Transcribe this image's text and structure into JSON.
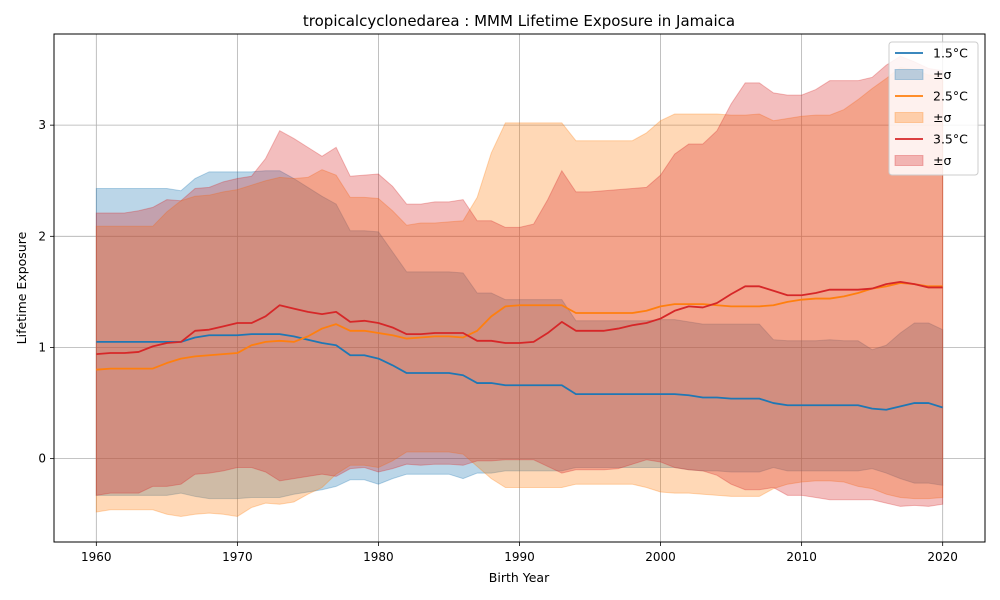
{
  "chart_data": {
    "type": "area",
    "title": "tropicalcyclonedarea : MMM Lifetime Exposure in Jamaica",
    "xlabel": "Birth Year",
    "ylabel": "Lifetime Exposure",
    "xlim": [
      1957,
      2023
    ],
    "ylim": [
      -0.75,
      3.82
    ],
    "xticks": [
      1960,
      1970,
      1980,
      1990,
      2000,
      2010,
      2020
    ],
    "yticks": [
      0,
      1,
      2,
      3
    ],
    "grid": true,
    "legend_position": "top-right",
    "x": [
      1960,
      1961,
      1962,
      1963,
      1964,
      1965,
      1966,
      1967,
      1968,
      1969,
      1970,
      1971,
      1972,
      1973,
      1974,
      1975,
      1976,
      1977,
      1978,
      1979,
      1980,
      1981,
      1982,
      1983,
      1984,
      1985,
      1986,
      1987,
      1988,
      1989,
      1990,
      1991,
      1992,
      1993,
      1994,
      1995,
      1996,
      1997,
      1998,
      1999,
      2000,
      2001,
      2002,
      2003,
      2004,
      2005,
      2006,
      2007,
      2008,
      2009,
      2010,
      2011,
      2012,
      2013,
      2014,
      2015,
      2016,
      2017,
      2018,
      2019,
      2020
    ],
    "series": [
      {
        "name": "1.5°C",
        "color": "#1f77b4",
        "band_label": "±σ",
        "mean": [
          1.05,
          1.05,
          1.05,
          1.05,
          1.05,
          1.05,
          1.05,
          1.09,
          1.11,
          1.11,
          1.11,
          1.12,
          1.12,
          1.12,
          1.1,
          1.07,
          1.04,
          1.02,
          0.93,
          0.93,
          0.9,
          0.84,
          0.77,
          0.77,
          0.77,
          0.77,
          0.75,
          0.68,
          0.68,
          0.66,
          0.66,
          0.66,
          0.66,
          0.66,
          0.58,
          0.58,
          0.58,
          0.58,
          0.58,
          0.58,
          0.58,
          0.58,
          0.57,
          0.55,
          0.55,
          0.54,
          0.54,
          0.54,
          0.5,
          0.48,
          0.48,
          0.48,
          0.48,
          0.48,
          0.48,
          0.45,
          0.44,
          0.47,
          0.5,
          0.5,
          0.46
        ],
        "upper": [
          2.43,
          2.43,
          2.43,
          2.43,
          2.43,
          2.43,
          2.41,
          2.52,
          2.58,
          2.58,
          2.58,
          2.58,
          2.59,
          2.59,
          2.52,
          2.44,
          2.36,
          2.29,
          2.05,
          2.05,
          2.04,
          1.86,
          1.68,
          1.68,
          1.68,
          1.68,
          1.67,
          1.49,
          1.49,
          1.43,
          1.43,
          1.43,
          1.43,
          1.43,
          1.24,
          1.24,
          1.24,
          1.24,
          1.24,
          1.24,
          1.25,
          1.25,
          1.23,
          1.21,
          1.21,
          1.21,
          1.21,
          1.21,
          1.07,
          1.06,
          1.06,
          1.06,
          1.07,
          1.06,
          1.06,
          0.98,
          1.02,
          1.13,
          1.22,
          1.22,
          1.16
        ],
        "lower": [
          -0.33,
          -0.33,
          -0.33,
          -0.33,
          -0.33,
          -0.33,
          -0.31,
          -0.34,
          -0.36,
          -0.36,
          -0.36,
          -0.35,
          -0.35,
          -0.35,
          -0.32,
          -0.3,
          -0.28,
          -0.25,
          -0.19,
          -0.19,
          -0.23,
          -0.18,
          -0.14,
          -0.14,
          -0.14,
          -0.14,
          -0.18,
          -0.13,
          -0.13,
          -0.11,
          -0.11,
          -0.11,
          -0.11,
          -0.11,
          -0.08,
          -0.08,
          -0.08,
          -0.08,
          -0.08,
          -0.08,
          -0.08,
          -0.08,
          -0.1,
          -0.11,
          -0.11,
          -0.12,
          -0.12,
          -0.12,
          -0.08,
          -0.11,
          -0.11,
          -0.11,
          -0.11,
          -0.11,
          -0.11,
          -0.09,
          -0.13,
          -0.18,
          -0.22,
          -0.22,
          -0.24
        ]
      },
      {
        "name": "2.5°C",
        "color": "#ff7f0e",
        "band_label": "±σ",
        "mean": [
          0.8,
          0.81,
          0.81,
          0.81,
          0.81,
          0.86,
          0.9,
          0.92,
          0.93,
          0.94,
          0.95,
          1.02,
          1.05,
          1.06,
          1.05,
          1.1,
          1.17,
          1.21,
          1.15,
          1.15,
          1.13,
          1.11,
          1.08,
          1.09,
          1.1,
          1.1,
          1.09,
          1.15,
          1.28,
          1.37,
          1.38,
          1.38,
          1.38,
          1.38,
          1.31,
          1.31,
          1.31,
          1.31,
          1.31,
          1.33,
          1.37,
          1.39,
          1.39,
          1.39,
          1.38,
          1.37,
          1.37,
          1.37,
          1.38,
          1.41,
          1.43,
          1.44,
          1.44,
          1.46,
          1.49,
          1.53,
          1.55,
          1.58,
          1.57,
          1.55,
          1.55
        ],
        "upper": [
          2.09,
          2.09,
          2.09,
          2.09,
          2.09,
          2.22,
          2.32,
          2.36,
          2.37,
          2.4,
          2.42,
          2.46,
          2.5,
          2.53,
          2.52,
          2.53,
          2.6,
          2.55,
          2.35,
          2.35,
          2.34,
          2.23,
          2.1,
          2.12,
          2.12,
          2.13,
          2.14,
          2.35,
          2.75,
          3.02,
          3.02,
          3.02,
          3.02,
          3.02,
          2.86,
          2.86,
          2.86,
          2.86,
          2.86,
          2.93,
          3.04,
          3.1,
          3.1,
          3.1,
          3.1,
          3.09,
          3.09,
          3.1,
          3.04,
          3.06,
          3.08,
          3.09,
          3.09,
          3.14,
          3.23,
          3.33,
          3.42,
          3.52,
          3.5,
          3.45,
          3.45
        ],
        "lower": [
          -0.48,
          -0.46,
          -0.46,
          -0.46,
          -0.46,
          -0.5,
          -0.52,
          -0.5,
          -0.49,
          -0.5,
          -0.52,
          -0.44,
          -0.4,
          -0.41,
          -0.39,
          -0.32,
          -0.26,
          -0.14,
          -0.06,
          -0.06,
          -0.08,
          -0.02,
          0.06,
          0.06,
          0.06,
          0.06,
          0.04,
          -0.07,
          -0.18,
          -0.26,
          -0.26,
          -0.26,
          -0.26,
          -0.26,
          -0.23,
          -0.23,
          -0.23,
          -0.23,
          -0.23,
          -0.26,
          -0.3,
          -0.31,
          -0.31,
          -0.32,
          -0.33,
          -0.34,
          -0.34,
          -0.34,
          -0.27,
          -0.23,
          -0.21,
          -0.2,
          -0.2,
          -0.21,
          -0.25,
          -0.27,
          -0.32,
          -0.35,
          -0.36,
          -0.36,
          -0.35
        ]
      },
      {
        "name": "3.5°C",
        "color": "#d62728",
        "band_label": "±σ",
        "mean": [
          0.94,
          0.95,
          0.95,
          0.96,
          1.01,
          1.04,
          1.05,
          1.15,
          1.16,
          1.19,
          1.22,
          1.22,
          1.28,
          1.38,
          1.35,
          1.32,
          1.3,
          1.32,
          1.23,
          1.24,
          1.22,
          1.18,
          1.12,
          1.12,
          1.13,
          1.13,
          1.13,
          1.06,
          1.06,
          1.04,
          1.04,
          1.05,
          1.13,
          1.23,
          1.15,
          1.15,
          1.15,
          1.17,
          1.2,
          1.22,
          1.26,
          1.33,
          1.37,
          1.36,
          1.4,
          1.48,
          1.55,
          1.55,
          1.51,
          1.47,
          1.47,
          1.49,
          1.52,
          1.52,
          1.52,
          1.53,
          1.57,
          1.59,
          1.57,
          1.54,
          1.54
        ],
        "upper": [
          2.21,
          2.21,
          2.21,
          2.23,
          2.26,
          2.33,
          2.32,
          2.43,
          2.44,
          2.49,
          2.52,
          2.54,
          2.7,
          2.95,
          2.88,
          2.8,
          2.72,
          2.8,
          2.54,
          2.55,
          2.56,
          2.45,
          2.29,
          2.29,
          2.31,
          2.31,
          2.33,
          2.14,
          2.14,
          2.08,
          2.08,
          2.11,
          2.33,
          2.59,
          2.4,
          2.4,
          2.41,
          2.42,
          2.43,
          2.44,
          2.55,
          2.74,
          2.83,
          2.83,
          2.95,
          3.19,
          3.38,
          3.38,
          3.29,
          3.27,
          3.27,
          3.32,
          3.4,
          3.4,
          3.4,
          3.43,
          3.54,
          3.62,
          3.57,
          3.51,
          3.49
        ],
        "lower": [
          -0.33,
          -0.31,
          -0.31,
          -0.31,
          -0.25,
          -0.25,
          -0.23,
          -0.14,
          -0.13,
          -0.11,
          -0.08,
          -0.08,
          -0.12,
          -0.2,
          -0.18,
          -0.16,
          -0.14,
          -0.16,
          -0.09,
          -0.08,
          -0.12,
          -0.09,
          -0.05,
          -0.06,
          -0.05,
          -0.05,
          -0.06,
          -0.02,
          -0.02,
          -0.01,
          -0.01,
          -0.01,
          -0.07,
          -0.13,
          -0.1,
          -0.1,
          -0.1,
          -0.09,
          -0.05,
          -0.01,
          -0.03,
          -0.08,
          -0.1,
          -0.11,
          -0.15,
          -0.23,
          -0.28,
          -0.28,
          -0.26,
          -0.33,
          -0.33,
          -0.35,
          -0.37,
          -0.37,
          -0.37,
          -0.37,
          -0.4,
          -0.43,
          -0.42,
          -0.43,
          -0.41
        ]
      }
    ]
  }
}
